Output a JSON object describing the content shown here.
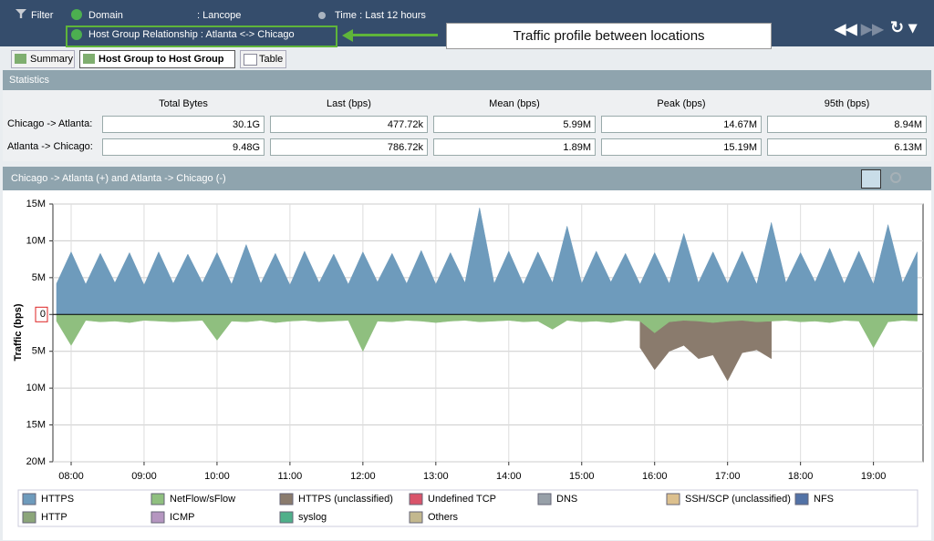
{
  "toolbar": {
    "filter": "Filter",
    "domain_label": "Domain",
    "domain_value": ": Lancope",
    "time": "Time : Last 12 hours",
    "host_group": "Host Group Relationship : Atlanta <-> Chicago",
    "callout": "Traffic profile between locations"
  },
  "tabs": [
    "Summary",
    "Host Group to Host Group",
    "Table"
  ],
  "statistics": {
    "title": "Statistics",
    "columns": [
      "Total Bytes",
      "Last (bps)",
      "Mean (bps)",
      "Peak (bps)",
      "95th (bps)"
    ],
    "rows": [
      {
        "label": "Chicago -> Atlanta:",
        "cells": [
          "30.1G",
          "477.72k",
          "5.99M",
          "14.67M",
          "8.94M"
        ]
      },
      {
        "label": "Atlanta -> Chicago:",
        "cells": [
          "9.48G",
          "786.72k",
          "1.89M",
          "15.19M",
          "6.13M"
        ]
      }
    ]
  },
  "chart_data": {
    "type": "area",
    "title": "Chicago -> Atlanta (+) and Atlanta -> Chicago (-)",
    "y_label": "Traffic (bps)",
    "xlim": [
      7.75,
      19.68
    ],
    "xticks": [
      {
        "value": 8,
        "label": "08:00"
      },
      {
        "value": 9,
        "label": "09:00"
      },
      {
        "value": 10,
        "label": "10:00"
      },
      {
        "value": 11,
        "label": "11:00"
      },
      {
        "value": 12,
        "label": "12:00"
      },
      {
        "value": 13,
        "label": "13:00"
      },
      {
        "value": 14,
        "label": "14:00"
      },
      {
        "value": 15,
        "label": "15:00"
      },
      {
        "value": 16,
        "label": "16:00"
      },
      {
        "value": 17,
        "label": "17:00"
      },
      {
        "value": 18,
        "label": "18:00"
      },
      {
        "value": 19,
        "label": "19:00"
      }
    ],
    "ylim": [
      -20000000,
      15000000
    ],
    "yticks": [
      {
        "value": 15000000,
        "label": "15M"
      },
      {
        "value": 10000000,
        "label": "10M"
      },
      {
        "value": 5000000,
        "label": "5M"
      },
      0,
      {
        "value": -5000000,
        "label": "5M"
      },
      {
        "value": -10000000,
        "label": "10M"
      },
      {
        "value": -15000000,
        "label": "15M"
      },
      {
        "value": -20000000,
        "label": "20M"
      }
    ],
    "grid": true,
    "x": [
      7.8,
      8.0,
      8.2,
      8.4,
      8.6,
      8.8,
      9.0,
      9.2,
      9.4,
      9.6,
      9.8,
      10.0,
      10.2,
      10.4,
      10.6,
      10.8,
      11.0,
      11.2,
      11.4,
      11.6,
      11.8,
      12.0,
      12.2,
      12.4,
      12.6,
      12.8,
      13.0,
      13.2,
      13.4,
      13.6,
      13.8,
      14.0,
      14.2,
      14.4,
      14.6,
      14.8,
      15.0,
      15.2,
      15.4,
      15.6,
      15.8,
      16.0,
      16.2,
      16.4,
      16.6,
      16.8,
      17.0,
      17.2,
      17.4,
      17.6,
      17.8,
      18.0,
      18.2,
      18.4,
      18.6,
      18.8,
      19.0,
      19.2,
      19.4,
      19.6
    ],
    "series": [
      {
        "name": "HTTPS",
        "color": "#6e9bbc",
        "values": [
          4200000,
          8500000,
          4100000,
          8300000,
          4300000,
          8400000,
          4000000,
          8500000,
          4200000,
          8200000,
          4300000,
          8400000,
          4100000,
          9500000,
          4200000,
          8300000,
          4000000,
          8600000,
          4300000,
          8200000,
          4100000,
          8500000,
          4400000,
          8300000,
          4200000,
          8700000,
          4100000,
          8400000,
          4300000,
          14500000,
          4200000,
          8600000,
          4100000,
          8500000,
          4300000,
          12000000,
          4200000,
          8600000,
          4400000,
          8300000,
          4100000,
          8400000,
          4200000,
          11000000,
          4300000,
          8500000,
          4200000,
          8600000,
          4100000,
          12500000,
          4300000,
          8400000,
          4400000,
          9000000,
          4200000,
          8600000,
          4100000,
          12200000,
          4300000,
          8500000
        ]
      },
      {
        "name": "NetFlow/sFlow",
        "color": "#8fbf7f",
        "values": [
          -900000,
          -4200000,
          -800000,
          -1000000,
          -900000,
          -1100000,
          -800000,
          -900000,
          -1000000,
          -900000,
          -800000,
          -3500000,
          -900000,
          -1000000,
          -800000,
          -1100000,
          -900000,
          -800000,
          -1000000,
          -900000,
          -800000,
          -5000000,
          -900000,
          -1000000,
          -800000,
          -900000,
          -1100000,
          -900000,
          -800000,
          -1000000,
          -900000,
          -800000,
          -1000000,
          -900000,
          -2000000,
          -800000,
          -1000000,
          -900000,
          -1100000,
          -800000,
          -900000,
          -2500000,
          -1000000,
          -800000,
          -900000,
          -1100000,
          -900000,
          -800000,
          -1000000,
          -900000,
          -800000,
          -1000000,
          -900000,
          -1100000,
          -800000,
          -900000,
          -4500000,
          -1000000,
          -800000,
          -900000
        ]
      },
      {
        "name": "HTTPS (unclassified)",
        "color": "#8a7b6d",
        "values": [
          null,
          null,
          null,
          null,
          null,
          null,
          null,
          null,
          null,
          null,
          null,
          null,
          null,
          null,
          null,
          null,
          null,
          null,
          null,
          null,
          null,
          null,
          null,
          null,
          null,
          null,
          null,
          null,
          null,
          null,
          null,
          null,
          null,
          null,
          null,
          null,
          null,
          null,
          null,
          null,
          -4500000,
          -7500000,
          -5000000,
          -4200000,
          -6000000,
          -5500000,
          -9000000,
          -5200000,
          -4800000,
          -6000000,
          null,
          null,
          null,
          null,
          null,
          null,
          null,
          null,
          null,
          null
        ]
      }
    ],
    "other_series": [
      {
        "name": "Undefined TCP",
        "color": "#d9546a"
      },
      {
        "name": "DNS",
        "color": "#97a0a8"
      },
      {
        "name": "SSH/SCP (unclassified)",
        "color": "#dcc08e"
      },
      {
        "name": "NFS",
        "color": "#5272a6"
      },
      {
        "name": "HTTP",
        "color": "#8ca67a"
      },
      {
        "name": "ICMP",
        "color": "#b596c0"
      },
      {
        "name": "syslog",
        "color": "#4fb08a"
      },
      {
        "name": "Others",
        "color": "#c3b88e"
      }
    ]
  }
}
